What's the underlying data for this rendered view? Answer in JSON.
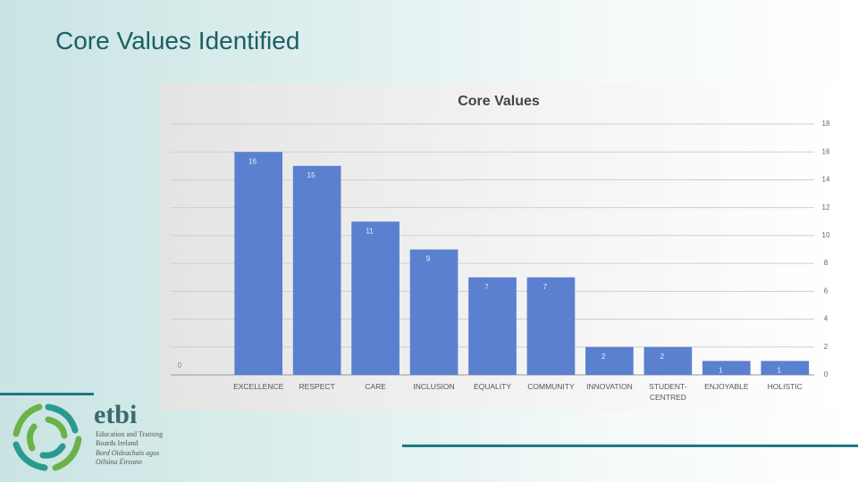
{
  "slide": {
    "title": "Core Values Identified",
    "logo": {
      "name": "etbi",
      "line1": "Education and Training",
      "line2": "Boards Ireland",
      "line3": "Bord Oideachais agus",
      "line4": "Oiliúna Éireann"
    }
  },
  "chart_data": {
    "type": "bar",
    "title": "Core Values",
    "categories": [
      null,
      "EXCELLENCE",
      "RESPECT",
      "CARE",
      "INCLUSION",
      "EQUALITY",
      "COMMUNITY",
      "INNOVATION",
      "STUDENT-CENTRED",
      "ENJOYABLE",
      "HOLISTIC"
    ],
    "values": [
      0,
      16,
      15,
      11,
      9,
      7,
      7,
      2,
      2,
      1,
      1
    ],
    "color": "#5b80d0",
    "ylim": [
      0,
      18
    ],
    "yticks": [
      0,
      2,
      4,
      6,
      8,
      10,
      12,
      14,
      16,
      18
    ],
    "grid": true
  }
}
